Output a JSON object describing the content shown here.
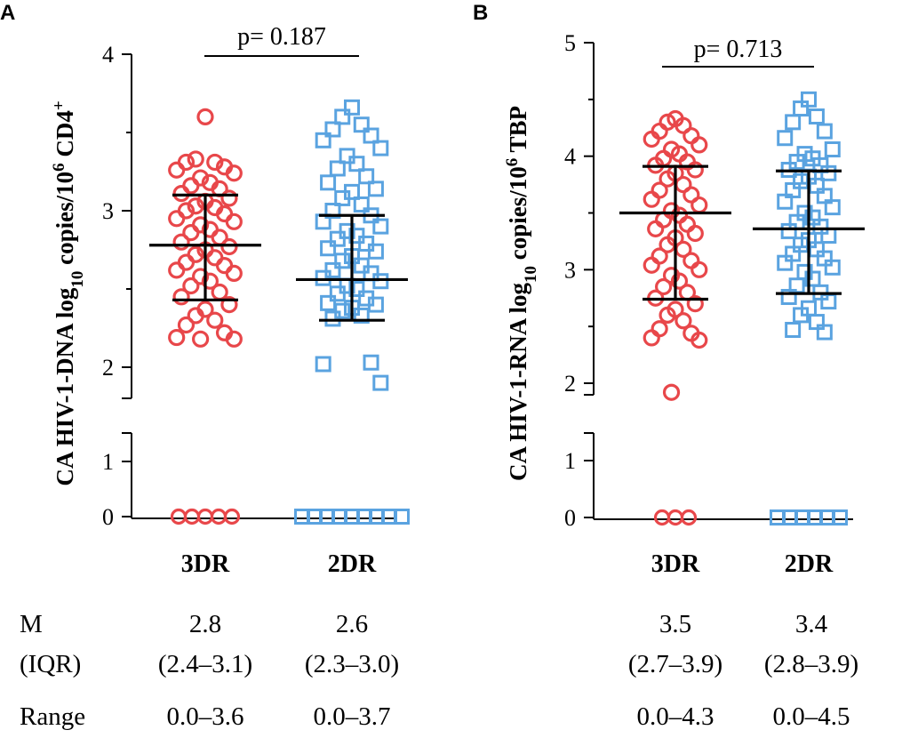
{
  "colors": {
    "series_3dr": "#e8474a",
    "series_2dr": "#5aa3e0",
    "bars": "#000000"
  },
  "chart_data": [
    {
      "panel": "A",
      "type": "scatter",
      "title": "",
      "ylabel_parts": {
        "main": "CA HIV-1-DNA log",
        "sub": "10",
        "mid": " copies/10",
        "sup": "6",
        "tail": " CD4",
        "sup2": "+"
      },
      "p_value": "p= 0.187",
      "categories": [
        "3DR",
        "2DR"
      ],
      "yticks_upper": [
        "2",
        "3",
        "4"
      ],
      "yticks_lower": [
        "0",
        "1"
      ],
      "ylim_upper": [
        1.8,
        4.0
      ],
      "ylim_lower": [
        0,
        1.4
      ],
      "series": [
        {
          "name": "3DR",
          "marker": "circle",
          "values": [
            3.6,
            3.33,
            3.31,
            3.31,
            3.28,
            3.26,
            3.24,
            3.21,
            3.18,
            3.16,
            3.14,
            3.11,
            3.08,
            3.06,
            3.03,
            3.02,
            3.0,
            2.98,
            2.95,
            2.93,
            2.91,
            2.88,
            2.86,
            2.83,
            2.8,
            2.77,
            2.75,
            2.72,
            2.7,
            2.67,
            2.65,
            2.62,
            2.6,
            2.58,
            2.55,
            2.52,
            2.48,
            2.45,
            2.4,
            2.37,
            2.33,
            2.3,
            2.27,
            2.22,
            2.19,
            2.18,
            2.18
          ],
          "zeros": 5,
          "median": 2.78,
          "iqr": [
            2.43,
            3.1
          ]
        },
        {
          "name": "2DR",
          "marker": "square",
          "values": [
            3.66,
            3.6,
            3.55,
            3.52,
            3.48,
            3.45,
            3.4,
            3.35,
            3.3,
            3.27,
            3.22,
            3.18,
            3.14,
            3.12,
            3.08,
            3.04,
            3.0,
            2.97,
            2.93,
            2.9,
            2.87,
            2.84,
            2.82,
            2.79,
            2.76,
            2.74,
            2.71,
            2.68,
            2.65,
            2.62,
            2.6,
            2.57,
            2.55,
            2.52,
            2.5,
            2.47,
            2.44,
            2.41,
            2.4,
            2.38,
            2.36,
            2.33,
            2.31,
            2.03,
            2.02,
            1.9
          ],
          "zeros": 9,
          "median": 2.56,
          "iqr": [
            2.3,
            2.97
          ]
        }
      ],
      "stats": [
        {
          "median": "2.8",
          "iqr": "(2.4–3.1)",
          "range": "0.0–3.6"
        },
        {
          "median": "2.6",
          "iqr": "(2.3–3.0)",
          "range": "0.0–3.7"
        }
      ]
    },
    {
      "panel": "B",
      "type": "scatter",
      "title": "",
      "ylabel_parts": {
        "main": "CA HIV-1-RNA log",
        "sub": "10",
        "mid": " copies/10",
        "sup": "6",
        "tail": " TBP",
        "sup2": ""
      },
      "p_value": "p= 0.713",
      "categories": [
        "3DR",
        "2DR"
      ],
      "yticks_upper": [
        "2",
        "3",
        "4",
        "5"
      ],
      "yticks_lower": [
        "0",
        "1"
      ],
      "ylim_upper": [
        1.9,
        5.0
      ],
      "ylim_lower": [
        0,
        1.4
      ],
      "series": [
        {
          "name": "3DR",
          "marker": "circle",
          "values": [
            4.33,
            4.3,
            4.27,
            4.22,
            4.18,
            4.15,
            4.1,
            4.06,
            4.02,
            3.98,
            3.95,
            3.92,
            3.88,
            3.85,
            3.8,
            3.75,
            3.7,
            3.66,
            3.62,
            3.57,
            3.52,
            3.48,
            3.44,
            3.4,
            3.36,
            3.32,
            3.28,
            3.22,
            3.18,
            3.12,
            3.08,
            3.04,
            3.0,
            2.95,
            2.9,
            2.85,
            2.8,
            2.75,
            2.7,
            2.65,
            2.6,
            2.55,
            2.48,
            2.44,
            2.4,
            2.38,
            1.92
          ],
          "zeros": 3,
          "median": 3.5,
          "iqr": [
            2.74,
            3.91
          ]
        },
        {
          "name": "2DR",
          "marker": "square",
          "values": [
            4.5,
            4.42,
            4.35,
            4.3,
            4.22,
            4.16,
            4.06,
            4.02,
            3.98,
            3.95,
            3.92,
            3.88,
            3.85,
            3.82,
            3.78,
            3.74,
            3.7,
            3.65,
            3.6,
            3.55,
            3.5,
            3.46,
            3.42,
            3.38,
            3.34,
            3.3,
            3.26,
            3.22,
            3.18,
            3.14,
            3.1,
            3.06,
            3.02,
            2.98,
            2.92,
            2.86,
            2.8,
            2.76,
            2.72,
            2.66,
            2.6,
            2.54,
            2.47,
            2.45
          ],
          "zeros": 6,
          "median": 3.36,
          "iqr": [
            2.79,
            3.87
          ]
        }
      ],
      "stats": [
        {
          "median": "3.5",
          "iqr": "(2.7–3.9)",
          "range": "0.0–4.3"
        },
        {
          "median": "3.4",
          "iqr": "(2.8–3.9)",
          "range": "0.0–4.5"
        }
      ]
    }
  ],
  "table": {
    "row_labels": [
      "M",
      "(IQR)",
      "Range"
    ]
  }
}
